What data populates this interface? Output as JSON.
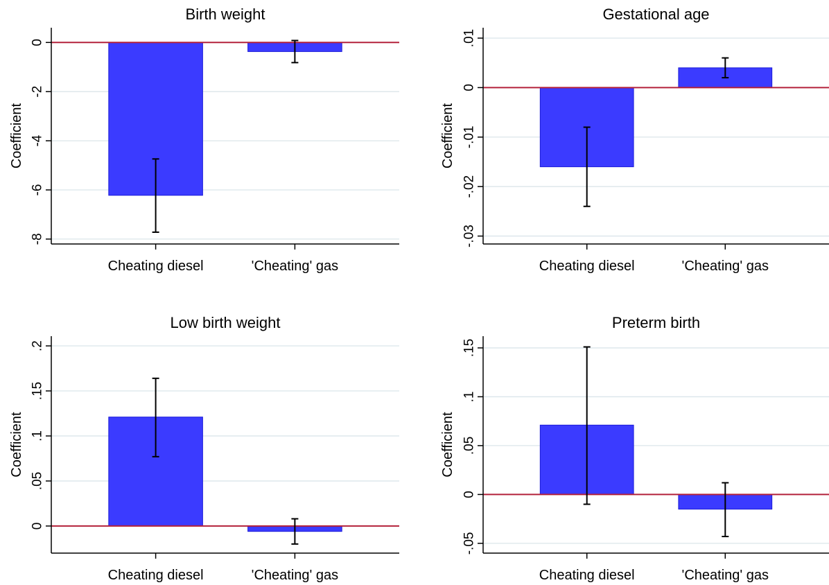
{
  "chart_data": [
    {
      "type": "bar",
      "title": "Birth weight",
      "ylabel": "Coefficient",
      "categories": [
        "Cheating diesel",
        "'Cheating' gas"
      ],
      "values": [
        -6.22,
        -0.37
      ],
      "ci_low": [
        -7.72,
        -0.82
      ],
      "ci_high": [
        -4.74,
        0.08
      ],
      "yticks": [
        0,
        -2,
        -4,
        -6,
        -8
      ],
      "ytick_labels": [
        "0",
        "-2",
        "-4",
        "-6",
        "-8"
      ],
      "ylim": [
        -8.2,
        0.6
      ],
      "reference_line": 0,
      "grid": true
    },
    {
      "type": "bar",
      "title": "Gestational age",
      "ylabel": "Coefficient",
      "categories": [
        "Cheating diesel",
        "'Cheating' gas"
      ],
      "values": [
        -0.016,
        0.004
      ],
      "ci_low": [
        -0.024,
        0.002
      ],
      "ci_high": [
        -0.008,
        0.006
      ],
      "yticks": [
        0.01,
        0,
        -0.01,
        -0.02,
        -0.03
      ],
      "ytick_labels": [
        ".01",
        "0",
        "-.01",
        "-.02",
        "-.03"
      ],
      "ylim": [
        -0.0316,
        0.0121
      ],
      "reference_line": 0,
      "grid": true
    },
    {
      "type": "bar",
      "title": "Low birth weight",
      "ylabel": "Coefficient",
      "categories": [
        "Cheating diesel",
        "'Cheating' gas"
      ],
      "values": [
        0.121,
        -0.006
      ],
      "ci_low": [
        0.077,
        -0.02
      ],
      "ci_high": [
        0.164,
        0.008
      ],
      "yticks": [
        0.2,
        0.15,
        0.1,
        0.05,
        0
      ],
      "ytick_labels": [
        ".2",
        ".15",
        ".1",
        ".05",
        "0"
      ],
      "ylim": [
        -0.0301,
        0.2108
      ],
      "reference_line": 0,
      "grid": true
    },
    {
      "type": "bar",
      "title": "Preterm birth",
      "ylabel": "Coefficient",
      "categories": [
        "Cheating diesel",
        "'Cheating' gas"
      ],
      "values": [
        0.071,
        -0.015
      ],
      "ci_low": [
        -0.01,
        -0.043
      ],
      "ci_high": [
        0.151,
        0.012
      ],
      "yticks": [
        0.15,
        0.1,
        0.05,
        0,
        -0.05
      ],
      "ytick_labels": [
        ".15",
        ".1",
        ".05",
        "0",
        "-.05"
      ],
      "ylim": [
        -0.06,
        0.162
      ],
      "reference_line": 0,
      "grid": true
    }
  ],
  "colors": {
    "bar_fill": "#3b3bff",
    "bar_stroke": "#1a1ad8",
    "reference_line": "#b3203a",
    "grid": "#dbe5ea",
    "axis": "#000000",
    "background": "#ffffff"
  }
}
